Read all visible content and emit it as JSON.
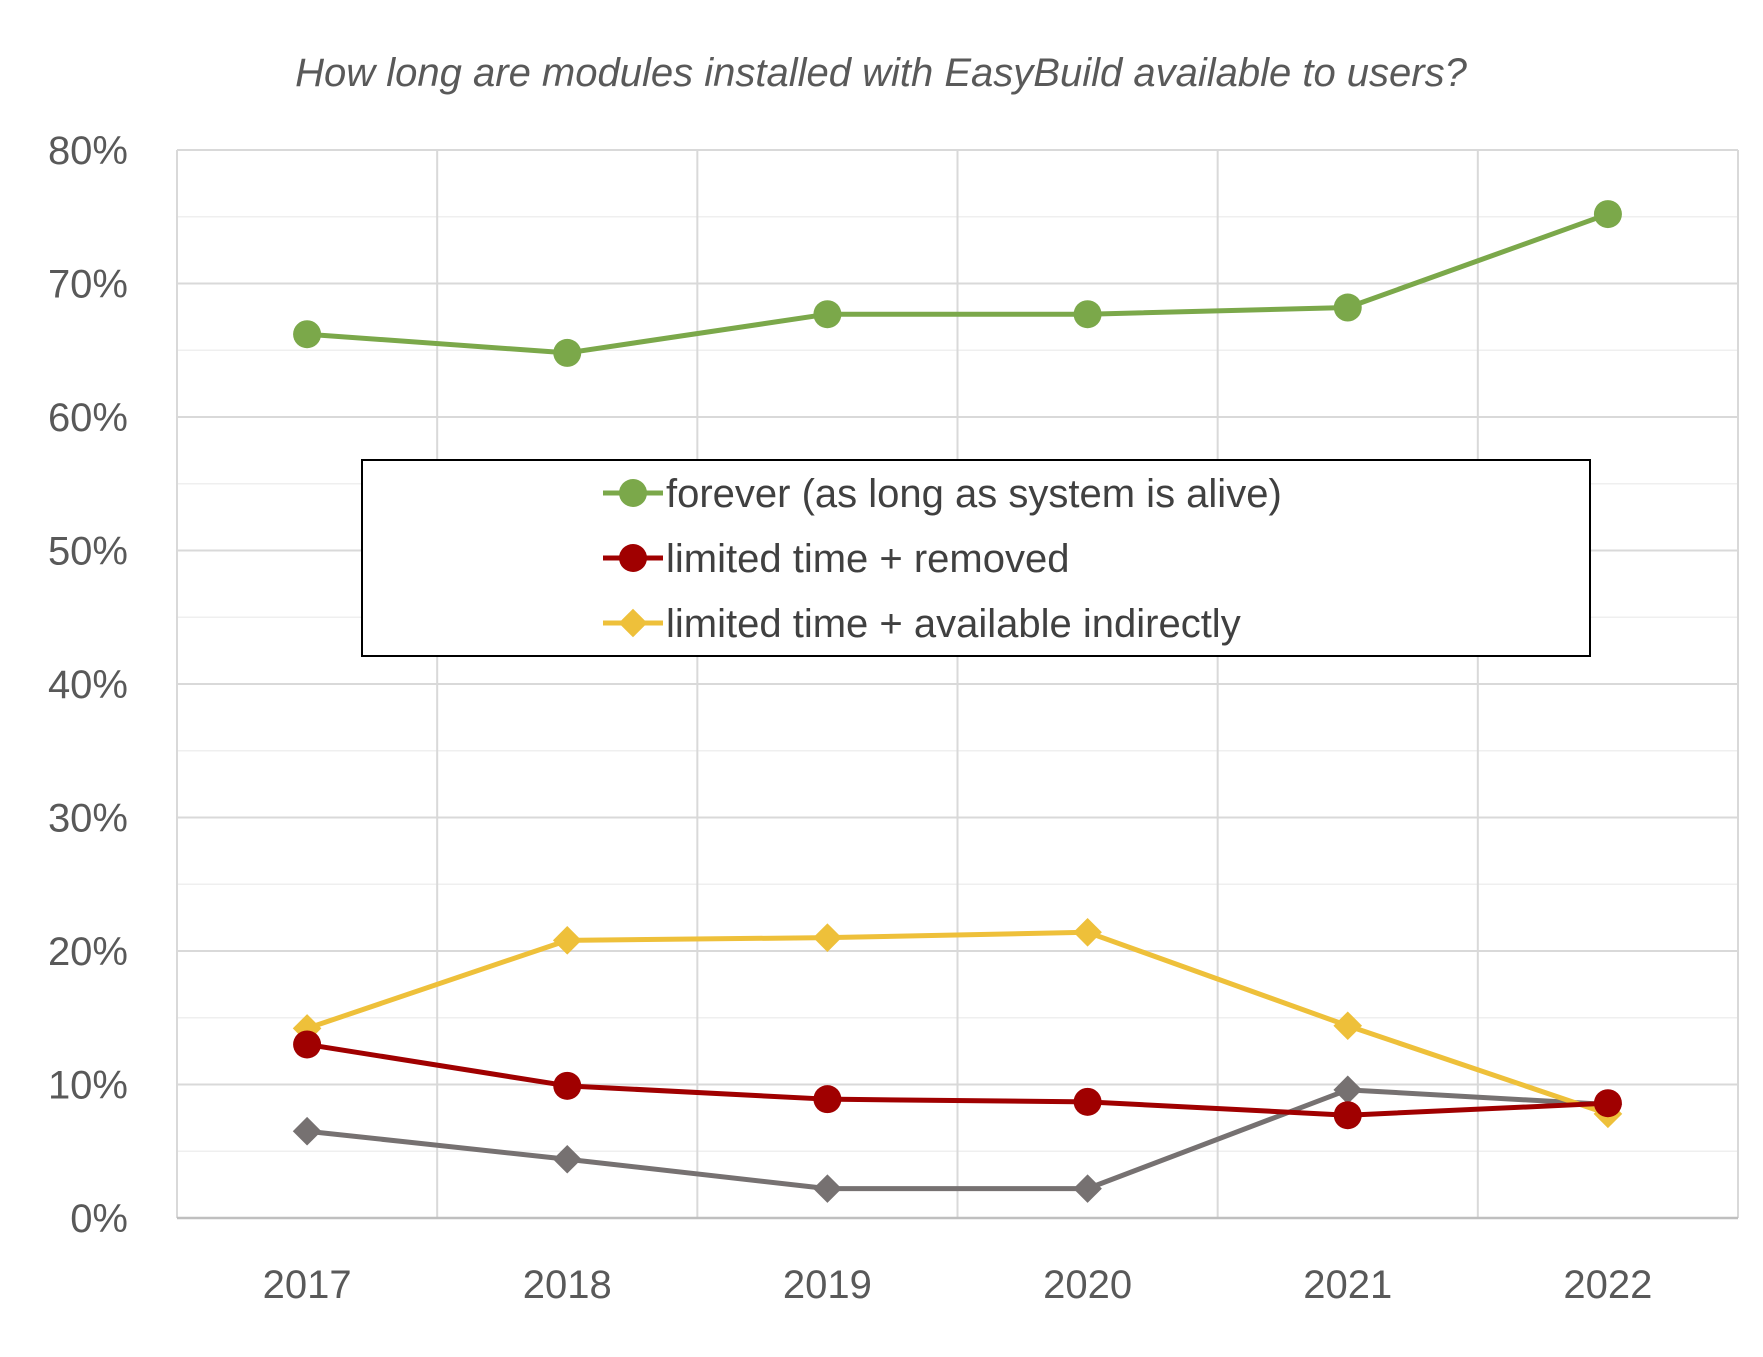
{
  "chart_data": {
    "type": "line",
    "title": "How long are modules installed with EasyBuild available to users?",
    "xlabel": "",
    "ylabel": "",
    "categories": [
      "2017",
      "2018",
      "2019",
      "2020",
      "2021",
      "2022"
    ],
    "ylim": [
      0,
      0.8
    ],
    "yticks": [
      {
        "value": 0.0,
        "label": "0%"
      },
      {
        "value": 0.1,
        "label": "10%"
      },
      {
        "value": 0.2,
        "label": "20%"
      },
      {
        "value": 0.3,
        "label": "30%"
      },
      {
        "value": 0.4,
        "label": "40%"
      },
      {
        "value": 0.5,
        "label": "50%"
      },
      {
        "value": 0.6,
        "label": "60%"
      },
      {
        "value": 0.7,
        "label": "70%"
      },
      {
        "value": 0.8,
        "label": "80%"
      }
    ],
    "minor_grid_step": 0.05,
    "grid": true,
    "legend_position": "center",
    "series": [
      {
        "name": "forever (as long as system is alive)",
        "color": "#7BA84A",
        "marker": "circle",
        "values": [
          0.662,
          0.648,
          0.677,
          0.677,
          0.682,
          0.752
        ]
      },
      {
        "name": "limited time + removed",
        "color": "#A00000",
        "marker": "circle",
        "values": [
          0.13,
          0.099,
          0.089,
          0.087,
          0.077,
          0.086
        ]
      },
      {
        "name": "limited time + available indirectly",
        "color": "#EEC03A",
        "marker": "diamond",
        "values": [
          0.142,
          0.208,
          0.21,
          0.214,
          0.144,
          0.078
        ]
      },
      {
        "color": "#767171",
        "marker": "diamond",
        "values": [
          0.065,
          0.044,
          0.022,
          0.022,
          0.096,
          0.085
        ]
      }
    ]
  },
  "colors": {
    "title_text": "#595959",
    "tick_text": "#595959",
    "major_grid": "#D9D9D9",
    "minor_grid": "#EFEFEF",
    "axis_line": "#BFBFBF",
    "legend_border": "#000000",
    "legend_text": "#404040"
  }
}
